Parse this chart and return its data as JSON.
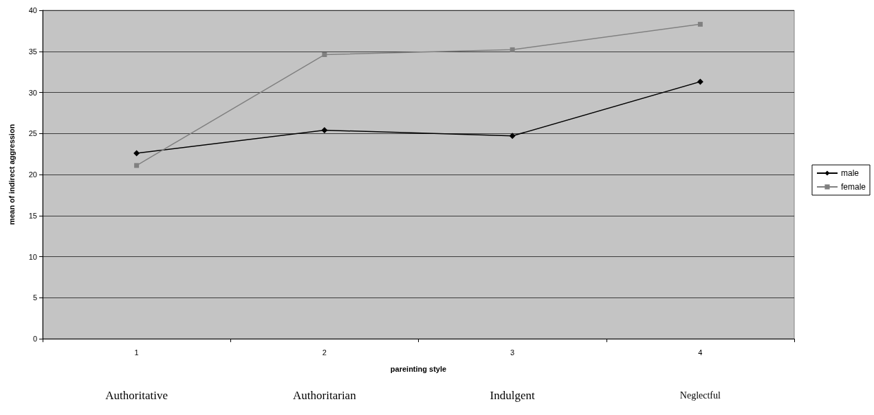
{
  "chart_data": {
    "type": "line",
    "xlabel": "pareinting style",
    "ylabel": "mean of indirect aggression",
    "categories": [
      "1",
      "2",
      "3",
      "4"
    ],
    "series": [
      {
        "name": "male",
        "color": "#000000",
        "marker": "diamond",
        "values": [
          22.6,
          25.4,
          24.7,
          31.3
        ]
      },
      {
        "name": "female",
        "color": "#808080",
        "marker": "square",
        "values": [
          21.1,
          34.6,
          35.2,
          38.3
        ]
      }
    ],
    "ylim": [
      0,
      40
    ],
    "yticks": [
      0,
      5,
      10,
      15,
      20,
      25,
      30,
      35,
      40
    ],
    "grid": "y",
    "legend": "right",
    "line_style": "solid",
    "annotations": [
      "Authoritative",
      "Authoritarian",
      "Indulgent",
      "Neglectful"
    ]
  }
}
